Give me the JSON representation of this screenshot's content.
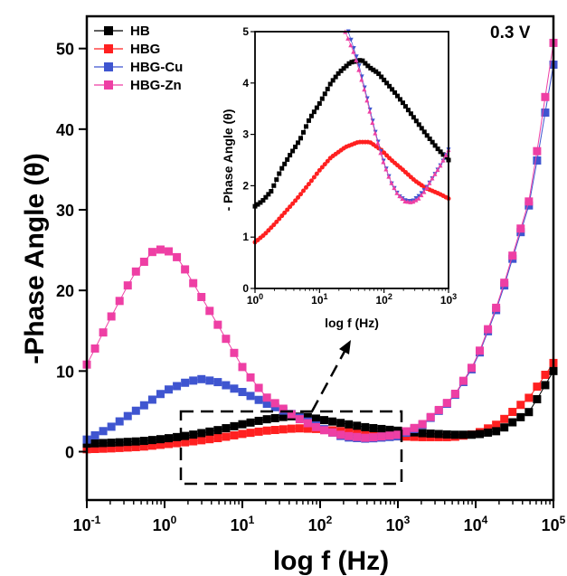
{
  "chart_data": [
    {
      "type": "scatter",
      "annotation": "0.3 V",
      "xlabel": "log f (Hz)",
      "ylabel": "-Phase Angle (θ)",
      "xscale": "log",
      "xlim": [
        0.1,
        100000
      ],
      "ylim": [
        -6,
        54
      ],
      "x_ticks": [
        0.1,
        1,
        10,
        100,
        1000,
        10000,
        100000
      ],
      "x_tick_labels": [
        {
          "base": "10",
          "exp": "-1"
        },
        {
          "base": "10",
          "exp": "0"
        },
        {
          "base": "10",
          "exp": "1"
        },
        {
          "base": "10",
          "exp": "2"
        },
        {
          "base": "10",
          "exp": "3"
        },
        {
          "base": "10",
          "exp": "4"
        },
        {
          "base": "10",
          "exp": "5"
        }
      ],
      "y_ticks": [
        0,
        10,
        20,
        30,
        40,
        50
      ],
      "legend_position": "top-left",
      "series": [
        {
          "name": "HB",
          "color": "#000000",
          "marker": "square",
          "points": [
            [
              0.1,
              1.0
            ],
            [
              0.2,
              1.1
            ],
            [
              0.5,
              1.3
            ],
            [
              1,
              1.6
            ],
            [
              2,
              2.0
            ],
            [
              5,
              2.7
            ],
            [
              10,
              3.4
            ],
            [
              20,
              4.0
            ],
            [
              40,
              4.4
            ],
            [
              70,
              4.3
            ],
            [
              100,
              4.0
            ],
            [
              200,
              3.5
            ],
            [
              400,
              3.0
            ],
            [
              1000,
              2.6
            ],
            [
              2000,
              2.3
            ],
            [
              5000,
              2.1
            ],
            [
              10000,
              2.1
            ],
            [
              20000,
              2.6
            ],
            [
              50000,
              5.0
            ],
            [
              100000,
              10.0
            ]
          ]
        },
        {
          "name": "HBG",
          "color": "#ff2020",
          "marker": "square",
          "points": [
            [
              0.1,
              0.3
            ],
            [
              0.2,
              0.4
            ],
            [
              0.5,
              0.6
            ],
            [
              1,
              0.9
            ],
            [
              2,
              1.2
            ],
            [
              5,
              1.7
            ],
            [
              10,
              2.2
            ],
            [
              20,
              2.6
            ],
            [
              50,
              2.9
            ],
            [
              100,
              2.8
            ],
            [
              200,
              2.5
            ],
            [
              500,
              2.1
            ],
            [
              1000,
              1.9
            ],
            [
              2000,
              1.8
            ],
            [
              5000,
              1.8
            ],
            [
              10000,
              2.2
            ],
            [
              20000,
              3.5
            ],
            [
              50000,
              6.8
            ],
            [
              100000,
              11.0
            ]
          ]
        },
        {
          "name": "HBG-Cu",
          "color": "#3f55d0",
          "marker": "square",
          "points": [
            [
              0.1,
              1.5
            ],
            [
              0.2,
              3.0
            ],
            [
              0.5,
              5.5
            ],
            [
              1,
              7.5
            ],
            [
              2,
              8.7
            ],
            [
              3,
              9.0
            ],
            [
              5,
              8.6
            ],
            [
              10,
              7.4
            ],
            [
              20,
              6.0
            ],
            [
              50,
              4.4
            ],
            [
              100,
              3.0
            ],
            [
              200,
              1.8
            ],
            [
              400,
              1.6
            ],
            [
              1000,
              1.9
            ],
            [
              2000,
              3.2
            ],
            [
              5000,
              6.5
            ],
            [
              10000,
              11.0
            ],
            [
              20000,
              18.5
            ],
            [
              50000,
              31.0
            ],
            [
              100000,
              48.0
            ]
          ]
        },
        {
          "name": "HBG-Zn",
          "color": "#ee3fa4",
          "marker": "square",
          "points": [
            [
              0.1,
              10.8
            ],
            [
              0.2,
              16.5
            ],
            [
              0.4,
              22.0
            ],
            [
              0.7,
              24.8
            ],
            [
              1,
              25.2
            ],
            [
              1.5,
              24.0
            ],
            [
              2,
              22.0
            ],
            [
              5,
              15.5
            ],
            [
              10,
              10.5
            ],
            [
              20,
              6.8
            ],
            [
              50,
              4.2
            ],
            [
              100,
              2.8
            ],
            [
              200,
              2.0
            ],
            [
              400,
              1.7
            ],
            [
              1000,
              2.1
            ],
            [
              2000,
              3.3
            ],
            [
              5000,
              6.6
            ],
            [
              10000,
              11.2
            ],
            [
              20000,
              18.8
            ],
            [
              50000,
              31.5
            ],
            [
              100000,
              50.7
            ]
          ]
        }
      ]
    },
    {
      "type": "scatter",
      "xlabel": "log f (Hz)",
      "ylabel": "- Phase Angle (θ)",
      "xscale": "log",
      "xlim": [
        1,
        1000
      ],
      "ylim": [
        0,
        5
      ],
      "x_ticks": [
        1,
        10,
        100,
        1000
      ],
      "x_tick_labels": [
        {
          "base": "10",
          "exp": "0"
        },
        {
          "base": "10",
          "exp": "1"
        },
        {
          "base": "10",
          "exp": "2"
        },
        {
          "base": "10",
          "exp": "3"
        }
      ],
      "y_ticks": [
        0,
        1,
        2,
        3,
        4,
        5
      ],
      "series": [
        {
          "name": "HB",
          "color": "#000000",
          "marker": "square",
          "points": [
            [
              1,
              1.6
            ],
            [
              1.3,
              1.7
            ],
            [
              1.8,
              1.9
            ],
            [
              2.5,
              2.3
            ],
            [
              3.5,
              2.6
            ],
            [
              5,
              2.9
            ],
            [
              7,
              3.3
            ],
            [
              10,
              3.6
            ],
            [
              15,
              4.0
            ],
            [
              20,
              4.2
            ],
            [
              30,
              4.4
            ],
            [
              45,
              4.45
            ],
            [
              60,
              4.3
            ],
            [
              80,
              4.2
            ],
            [
              110,
              4.0
            ],
            [
              150,
              3.8
            ],
            [
              200,
              3.6
            ],
            [
              300,
              3.3
            ],
            [
              450,
              3.0
            ],
            [
              700,
              2.7
            ],
            [
              1000,
              2.5
            ]
          ]
        },
        {
          "name": "HBG",
          "color": "#ff2020",
          "marker": "circle",
          "points": [
            [
              1,
              0.9
            ],
            [
              1.4,
              1.05
            ],
            [
              2,
              1.25
            ],
            [
              3,
              1.5
            ],
            [
              4.5,
              1.75
            ],
            [
              7,
              2.05
            ],
            [
              10,
              2.3
            ],
            [
              15,
              2.55
            ],
            [
              25,
              2.75
            ],
            [
              40,
              2.85
            ],
            [
              60,
              2.85
            ],
            [
              90,
              2.7
            ],
            [
              130,
              2.5
            ],
            [
              200,
              2.3
            ],
            [
              300,
              2.1
            ],
            [
              450,
              1.95
            ],
            [
              700,
              1.85
            ],
            [
              1000,
              1.75
            ]
          ]
        },
        {
          "name": "HBG-Cu",
          "color": "#3f55d0",
          "marker": "triangle-down",
          "points": [
            [
              28,
              5.0
            ],
            [
              40,
              4.4
            ],
            [
              55,
              3.7
            ],
            [
              75,
              3.0
            ],
            [
              100,
              2.45
            ],
            [
              130,
              2.05
            ],
            [
              170,
              1.8
            ],
            [
              220,
              1.7
            ],
            [
              280,
              1.7
            ],
            [
              350,
              1.8
            ],
            [
              450,
              1.95
            ],
            [
              600,
              2.2
            ],
            [
              800,
              2.45
            ],
            [
              1000,
              2.7
            ]
          ]
        },
        {
          "name": "HBG-Zn",
          "color": "#ee3fa4",
          "marker": "triangle-up",
          "points": [
            [
              25,
              5.0
            ],
            [
              35,
              4.55
            ],
            [
              50,
              3.85
            ],
            [
              70,
              3.1
            ],
            [
              95,
              2.5
            ],
            [
              125,
              2.1
            ],
            [
              160,
              1.85
            ],
            [
              210,
              1.7
            ],
            [
              270,
              1.68
            ],
            [
              340,
              1.75
            ],
            [
              430,
              1.9
            ],
            [
              560,
              2.15
            ],
            [
              750,
              2.4
            ],
            [
              1000,
              2.7
            ]
          ]
        }
      ]
    }
  ]
}
